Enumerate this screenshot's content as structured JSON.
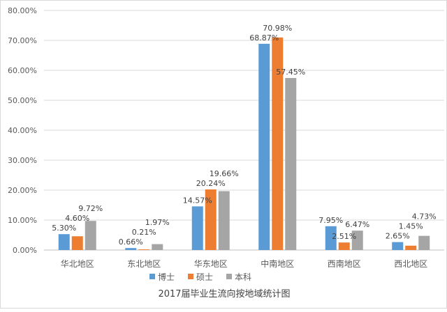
{
  "chart_data": {
    "type": "bar",
    "title": "2017届毕业生流向按地域统计图",
    "xlabel": "",
    "ylabel": "",
    "ylim": [
      0,
      80
    ],
    "yticks": [
      "0.00%",
      "10.00%",
      "20.00%",
      "30.00%",
      "40.00%",
      "50.00%",
      "60.00%",
      "70.00%",
      "80.00%"
    ],
    "grid": true,
    "legend_position": "bottom",
    "categories": [
      "华北地区",
      "东北地区",
      "华东地区",
      "中南地区",
      "西南地区",
      "西北地区"
    ],
    "series": [
      {
        "name": "博士",
        "color": "#5b9bd5",
        "values": [
          5.3,
          0.66,
          14.57,
          68.87,
          7.95,
          2.65
        ],
        "labels": [
          "5.30%",
          "0.66%",
          "14.57%",
          "68.87%",
          "7.95%",
          "2.65%"
        ]
      },
      {
        "name": "硕士",
        "color": "#ed7d31",
        "values": [
          4.6,
          0.21,
          20.24,
          70.98,
          2.51,
          1.45
        ],
        "labels": [
          "4.60%",
          "0.21%",
          "20.24%",
          "70.98%",
          "2.51%",
          "1.45%"
        ]
      },
      {
        "name": "本科",
        "color": "#a5a5a5",
        "values": [
          9.72,
          1.97,
          19.66,
          57.45,
          6.47,
          4.73
        ],
        "labels": [
          "9.72%",
          "1.97%",
          "19.66%",
          "57.45%",
          "6.47%",
          "4.73%"
        ]
      }
    ]
  }
}
